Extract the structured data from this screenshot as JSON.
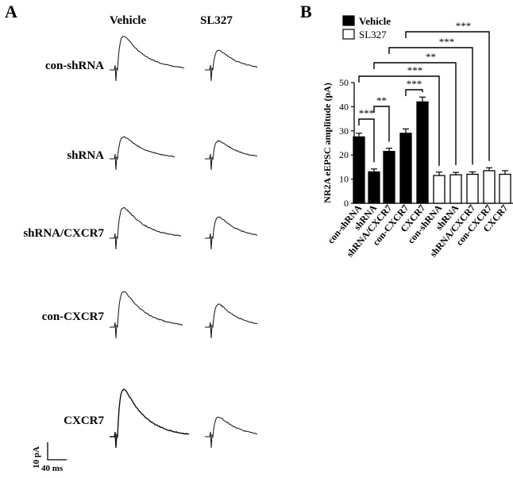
{
  "panel_a": {
    "letter": "A",
    "columns": [
      "Vehicle",
      "SL327"
    ],
    "rows": [
      "con-shRNA",
      "shRNA",
      "shRNA/CXCR7",
      "con-CXCR7",
      "CXCR7"
    ],
    "scale_bar": {
      "y_label": "10 pA",
      "x_label": "40 ms"
    }
  },
  "panel_b": {
    "letter": "B"
  },
  "chart_data": {
    "type": "bar",
    "categories": [
      "con-shRNA",
      "shRNA",
      "shRNA/CXCR7",
      "con-CXCR7",
      "CXCR7",
      "con-shRNA",
      "shRNA",
      "shRNA/CXCR7",
      "con-CXCR7",
      "CXCR7"
    ],
    "series": [
      {
        "name": "Vehicle",
        "values": [
          27.5,
          13,
          21.5,
          29,
          42,
          null,
          null,
          null,
          null,
          null
        ],
        "errors": [
          1.5,
          1.2,
          1.3,
          1.8,
          2.0,
          null,
          null,
          null,
          null,
          null
        ],
        "fill": "#000000"
      },
      {
        "name": "SL327",
        "values": [
          null,
          null,
          null,
          null,
          null,
          11.5,
          11.8,
          12,
          13.5,
          12
        ],
        "errors": [
          null,
          null,
          null,
          null,
          null,
          1.4,
          1.0,
          1.0,
          1.2,
          1.5
        ],
        "fill": "#ffffff"
      }
    ],
    "ylabel": "NR2A eEPSC amplitude (pA)",
    "xlabel": "",
    "ylim": [
      0,
      50
    ],
    "yticks": [
      0,
      10,
      20,
      30,
      40,
      50
    ],
    "legend": {
      "position": "top-left",
      "entries": [
        "Vehicle",
        "SL327"
      ]
    },
    "grid": false,
    "annotations": [
      {
        "from": 0,
        "to": 1,
        "label": "***"
      },
      {
        "from": 1,
        "to": 2,
        "label": "**"
      },
      {
        "from": 3,
        "to": 4,
        "label": "***"
      },
      {
        "from": 0,
        "to": 5,
        "label": "***"
      },
      {
        "from": 1,
        "to": 6,
        "label": "**"
      },
      {
        "from": 2,
        "to": 7,
        "label": "***"
      },
      {
        "from": 3,
        "to": 8,
        "label": "***"
      }
    ]
  }
}
